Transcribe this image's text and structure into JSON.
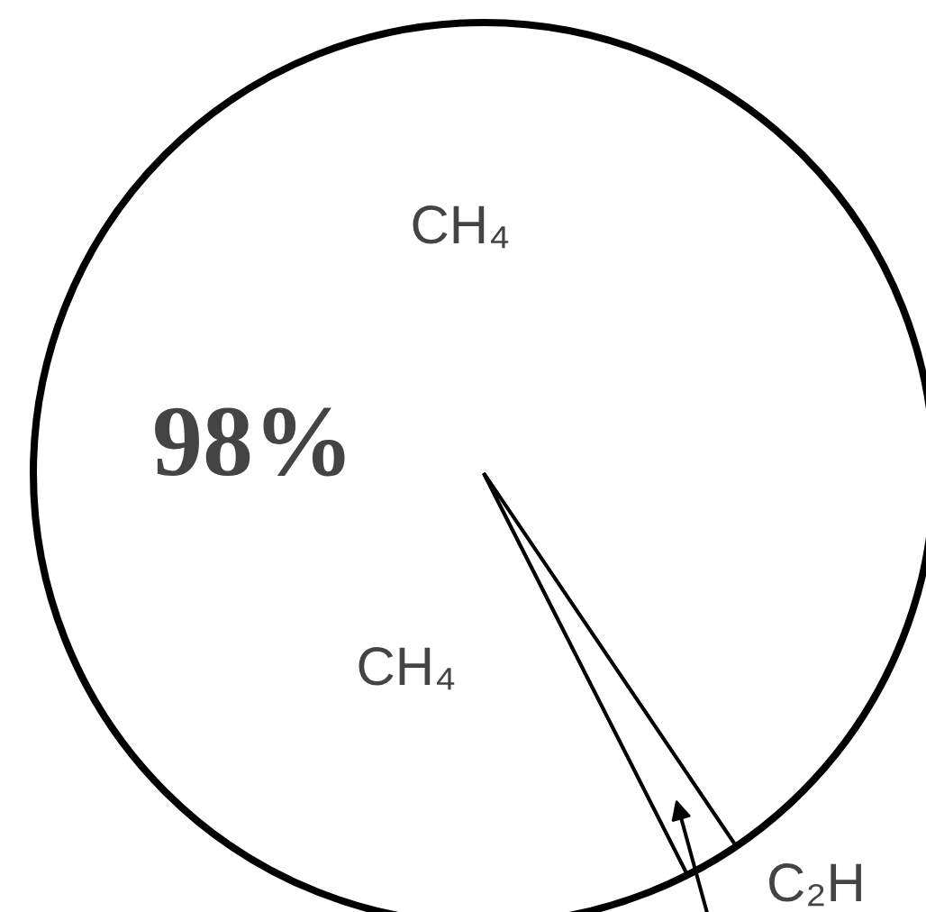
{
  "chart_data": {
    "type": "pie",
    "categories": [
      "CH₄",
      "C₂H"
    ],
    "values": [
      98,
      2
    ],
    "colors": [
      "#ffffff",
      "#ffffff"
    ],
    "value_labels": [
      "98%",
      null
    ],
    "annotations": [
      "CH₄"
    ]
  }
}
